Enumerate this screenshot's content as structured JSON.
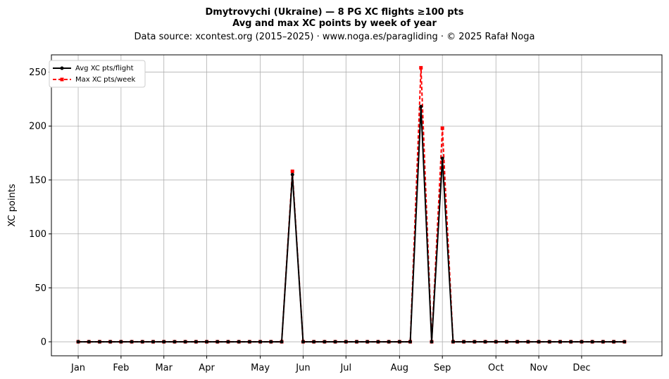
{
  "chart_data": {
    "type": "line",
    "title_line1": "Dmytrovychi (Ukraine)  —  8 PG XC flights ≥100 pts",
    "title_line2": "Avg and max XC points by week of year",
    "subtitle": "Data source: xcontest.org (2015–2025)  ·  www.noga.es/paragliding  ·  © 2025 Rafał Noga",
    "xlabel": "",
    "ylabel": "XC points",
    "xlim": [
      -2.5,
      54.5
    ],
    "ylim": [
      -13,
      266
    ],
    "yticks": [
      0,
      50,
      100,
      150,
      200,
      250
    ],
    "xticks": [
      {
        "label": "Jan",
        "x": 0
      },
      {
        "label": "Feb",
        "x": 4
      },
      {
        "label": "Mar",
        "x": 8
      },
      {
        "label": "Apr",
        "x": 12
      },
      {
        "label": "May",
        "x": 17
      },
      {
        "label": "Jun",
        "x": 21
      },
      {
        "label": "Jul",
        "x": 25
      },
      {
        "label": "Aug",
        "x": 30
      },
      {
        "label": "Sep",
        "x": 34
      },
      {
        "label": "Oct",
        "x": 39
      },
      {
        "label": "Nov",
        "x": 43
      },
      {
        "label": "Dec",
        "x": 47
      }
    ],
    "grid": true,
    "legend_position": "top-left",
    "x": [
      0,
      1,
      2,
      3,
      4,
      5,
      6,
      7,
      8,
      9,
      10,
      11,
      12,
      13,
      14,
      15,
      16,
      17,
      18,
      19,
      20,
      21,
      22,
      23,
      24,
      25,
      26,
      27,
      28,
      29,
      30,
      31,
      32,
      33,
      34,
      35,
      36,
      37,
      38,
      39,
      40,
      41,
      42,
      43,
      44,
      45,
      46,
      47,
      48,
      49,
      50,
      51
    ],
    "series": [
      {
        "name": "Avg XC pts/flight",
        "color": "#000000",
        "values": [
          0,
          0,
          0,
          0,
          0,
          0,
          0,
          0,
          0,
          0,
          0,
          0,
          0,
          0,
          0,
          0,
          0,
          0,
          0,
          0,
          155,
          0,
          0,
          0,
          0,
          0,
          0,
          0,
          0,
          0,
          0,
          0,
          218,
          0,
          170,
          0,
          0,
          0,
          0,
          0,
          0,
          0,
          0,
          0,
          0,
          0,
          0,
          0,
          0,
          0,
          0,
          0
        ]
      },
      {
        "name": "Max XC pts/week",
        "color": "#ff0000",
        "values": [
          0,
          0,
          0,
          0,
          0,
          0,
          0,
          0,
          0,
          0,
          0,
          0,
          0,
          0,
          0,
          0,
          0,
          0,
          0,
          0,
          158,
          0,
          0,
          0,
          0,
          0,
          0,
          0,
          0,
          0,
          0,
          0,
          254,
          0,
          198,
          0,
          0,
          0,
          0,
          0,
          0,
          0,
          0,
          0,
          0,
          0,
          0,
          0,
          0,
          0,
          0,
          0
        ]
      }
    ]
  }
}
